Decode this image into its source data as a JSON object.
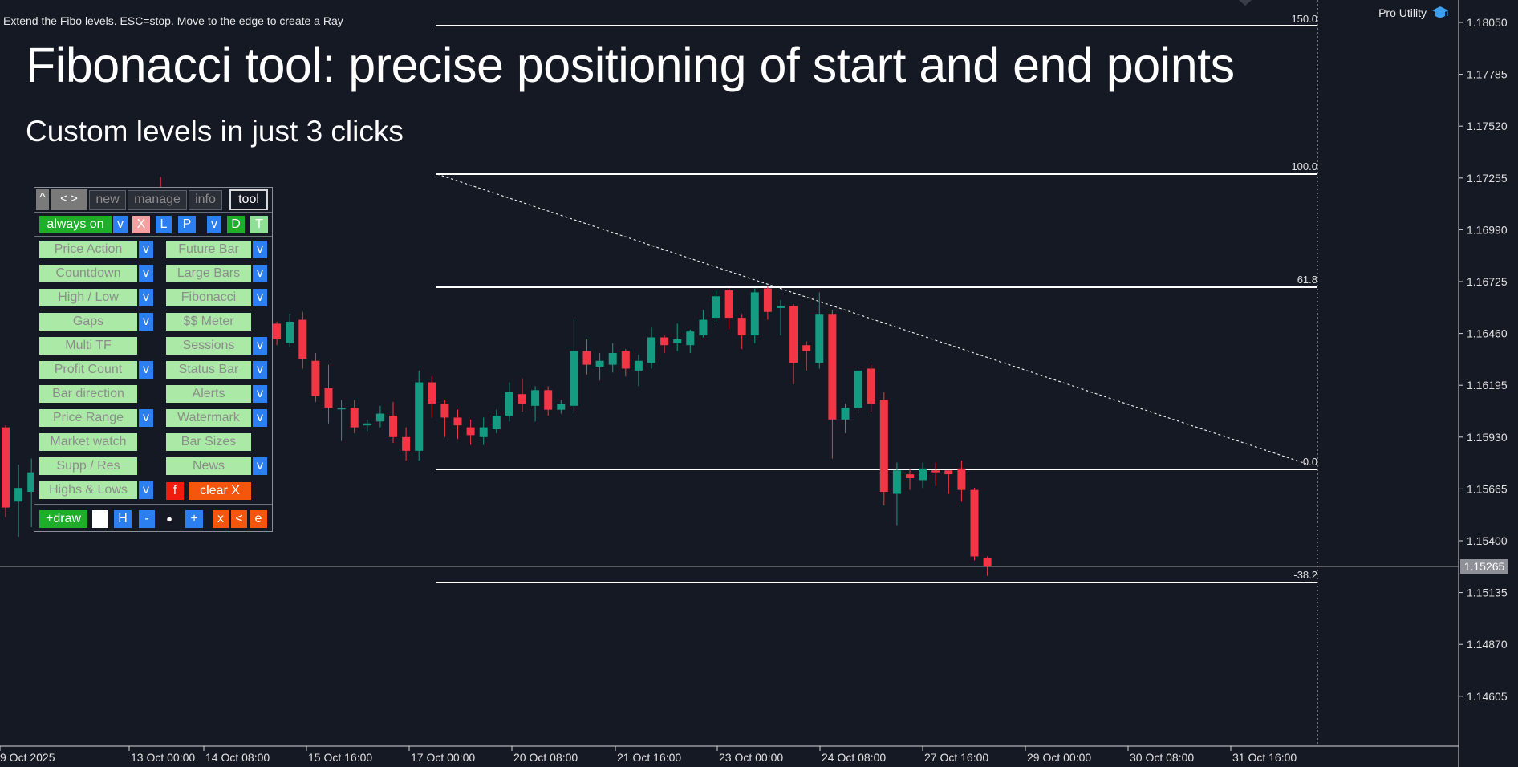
{
  "status_message": "Extend the Fibo levels. ESC=stop. Move to the edge to create a Ray",
  "pro_utility": "Pro Utility",
  "headline": "Fibonacci tool: precise positioning of start and end points",
  "subheadline": "Custom levels in just 3 clicks",
  "colors": {
    "background": "#141924",
    "bull": "#159b82",
    "bear": "#f23645",
    "green_btn": "#1fae2a",
    "blue_btn": "#2b7ff0",
    "orange_btn": "#f3560c"
  },
  "fibo_levels": [
    {
      "label": "150.0",
      "price": 1.1798
    },
    {
      "label": "100.0",
      "price": 1.1726
    },
    {
      "label": "61.8",
      "price": 1.1671
    },
    {
      "label": "0.0",
      "price": 1.1582
    },
    {
      "label": "-38.2",
      "price": 1.1527
    }
  ],
  "price_axis": {
    "ticks": [
      "1.18050",
      "1.17785",
      "1.17520",
      "1.17255",
      "1.16990",
      "1.16725",
      "1.16460",
      "1.16195",
      "1.15930",
      "1.15665",
      "1.15400",
      "1.15135",
      "1.14870",
      "1.14605"
    ],
    "current_price": "1.15265"
  },
  "time_axis": [
    "9 Oct 2025",
    "13 Oct 00:00",
    "14 Oct 08:00",
    "15 Oct 16:00",
    "17 Oct 00:00",
    "20 Oct 08:00",
    "21 Oct 16:00",
    "23 Oct 00:00",
    "24 Oct 08:00",
    "27 Oct 16:00",
    "29 Oct 00:00",
    "30 Oct 08:00",
    "31 Oct 16:00"
  ],
  "panel": {
    "collapse": "^",
    "arrows": "< >",
    "tabs": [
      "new",
      "manage",
      "info",
      "tool"
    ],
    "active_tab": "tool",
    "always_on": "always on",
    "row1": {
      "v1": "v",
      "x": "X",
      "l": "L",
      "p": "P",
      "v2": "v",
      "d": "D",
      "t": "T"
    },
    "modules_left": [
      "Price Action",
      "Countdown",
      "High / Low",
      "Gaps",
      "Multi TF",
      "Profit Count",
      "Bar direction",
      "Price Range",
      "Market watch",
      "Supp / Res",
      "Highs & Lows"
    ],
    "modules_right": [
      "Future Bar",
      "Large Bars",
      "Fibonacci",
      "$$ Meter",
      "Sessions",
      "Status Bar",
      "Alerts",
      "Watermark",
      "Bar Sizes",
      "News"
    ],
    "v_label": "v",
    "f_label": "f",
    "clear_x": "clear X",
    "bottom": {
      "draw": "+draw",
      "h": "H",
      "minus": "-",
      "dot": "●",
      "plus": "+",
      "x": "x",
      "lt": "<",
      "e": "e"
    }
  },
  "candles": [
    {
      "o": 1.1598,
      "h": 1.1599,
      "l": 1.1552,
      "c": 1.1557
    },
    {
      "o": 1.156,
      "h": 1.1579,
      "l": 1.1542,
      "c": 1.1567
    },
    {
      "o": 1.1565,
      "h": 1.1582,
      "l": 1.1547,
      "c": 1.1575
    },
    {
      "o": 1.1595,
      "h": 1.1629,
      "l": 1.1585,
      "c": 1.162
    },
    {
      "o": 1.162,
      "h": 1.165,
      "l": 1.1606,
      "c": 1.164
    },
    {
      "o": 1.1641,
      "h": 1.1662,
      "l": 1.1629,
      "c": 1.1653
    },
    {
      "o": 1.1652,
      "h": 1.1665,
      "l": 1.1642,
      "c": 1.165
    },
    {
      "o": 1.165,
      "h": 1.1667,
      "l": 1.164,
      "c": 1.1655
    },
    {
      "o": 1.1653,
      "h": 1.1684,
      "l": 1.1648,
      "c": 1.1677
    },
    {
      "o": 1.1677,
      "h": 1.1697,
      "l": 1.167,
      "c": 1.169
    },
    {
      "o": 1.169,
      "h": 1.1712,
      "l": 1.1684,
      "c": 1.1707
    },
    {
      "o": 1.1706,
      "h": 1.1715,
      "l": 1.1699,
      "c": 1.1712
    },
    {
      "o": 1.1714,
      "h": 1.1726,
      "l": 1.1702,
      "c": 1.1707
    },
    {
      "o": 1.1708,
      "h": 1.171,
      "l": 1.167,
      "c": 1.1676
    },
    {
      "o": 1.1678,
      "h": 1.1682,
      "l": 1.166,
      "c": 1.167
    },
    {
      "o": 1.1672,
      "h": 1.1676,
      "l": 1.1649,
      "c": 1.1653
    },
    {
      "o": 1.1656,
      "h": 1.1669,
      "l": 1.1654,
      "c": 1.1664
    },
    {
      "o": 1.1667,
      "h": 1.1674,
      "l": 1.166,
      "c": 1.1671
    },
    {
      "o": 1.1673,
      "h": 1.1677,
      "l": 1.1647,
      "c": 1.1663
    },
    {
      "o": 1.1665,
      "h": 1.1666,
      "l": 1.165,
      "c": 1.1652
    },
    {
      "o": 1.1653,
      "h": 1.1658,
      "l": 1.1643,
      "c": 1.1649
    },
    {
      "o": 1.1651,
      "h": 1.1652,
      "l": 1.164,
      "c": 1.1643
    },
    {
      "o": 1.1641,
      "h": 1.1656,
      "l": 1.1639,
      "c": 1.1652
    },
    {
      "o": 1.1653,
      "h": 1.1657,
      "l": 1.1628,
      "c": 1.1633
    },
    {
      "o": 1.1632,
      "h": 1.1636,
      "l": 1.1611,
      "c": 1.1614
    },
    {
      "o": 1.1618,
      "h": 1.163,
      "l": 1.16,
      "c": 1.1608
    },
    {
      "o": 1.1608,
      "h": 1.1612,
      "l": 1.1591,
      "c": 1.1608
    },
    {
      "o": 1.1608,
      "h": 1.1612,
      "l": 1.1595,
      "c": 1.1598
    },
    {
      "o": 1.1599,
      "h": 1.1602,
      "l": 1.1596,
      "c": 1.16
    },
    {
      "o": 1.1601,
      "h": 1.1609,
      "l": 1.1598,
      "c": 1.1605
    },
    {
      "o": 1.1604,
      "h": 1.1611,
      "l": 1.159,
      "c": 1.1593
    },
    {
      "o": 1.1593,
      "h": 1.1598,
      "l": 1.1581,
      "c": 1.1586
    },
    {
      "o": 1.1586,
      "h": 1.1627,
      "l": 1.1581,
      "c": 1.1621
    },
    {
      "o": 1.1621,
      "h": 1.1624,
      "l": 1.1603,
      "c": 1.161
    },
    {
      "o": 1.161,
      "h": 1.1612,
      "l": 1.1593,
      "c": 1.1603
    },
    {
      "o": 1.1603,
      "h": 1.1607,
      "l": 1.1592,
      "c": 1.1599
    },
    {
      "o": 1.1598,
      "h": 1.1602,
      "l": 1.1589,
      "c": 1.1594
    },
    {
      "o": 1.1593,
      "h": 1.1603,
      "l": 1.1589,
      "c": 1.1598
    },
    {
      "o": 1.1597,
      "h": 1.1607,
      "l": 1.1595,
      "c": 1.1604
    },
    {
      "o": 1.1604,
      "h": 1.1621,
      "l": 1.1601,
      "c": 1.1616
    },
    {
      "o": 1.1615,
      "h": 1.1623,
      "l": 1.1606,
      "c": 1.161
    },
    {
      "o": 1.1609,
      "h": 1.1619,
      "l": 1.1601,
      "c": 1.1617
    },
    {
      "o": 1.1617,
      "h": 1.1619,
      "l": 1.1604,
      "c": 1.1607
    },
    {
      "o": 1.1607,
      "h": 1.1612,
      "l": 1.1605,
      "c": 1.161
    },
    {
      "o": 1.1609,
      "h": 1.1653,
      "l": 1.1605,
      "c": 1.1637
    },
    {
      "o": 1.1637,
      "h": 1.1643,
      "l": 1.1625,
      "c": 1.163
    },
    {
      "o": 1.1629,
      "h": 1.1636,
      "l": 1.1622,
      "c": 1.1632
    },
    {
      "o": 1.163,
      "h": 1.1641,
      "l": 1.1626,
      "c": 1.1636
    },
    {
      "o": 1.1637,
      "h": 1.1638,
      "l": 1.1624,
      "c": 1.1628
    },
    {
      "o": 1.1627,
      "h": 1.1635,
      "l": 1.1619,
      "c": 1.1632
    },
    {
      "o": 1.1631,
      "h": 1.1649,
      "l": 1.1628,
      "c": 1.1644
    },
    {
      "o": 1.1644,
      "h": 1.1645,
      "l": 1.1636,
      "c": 1.164
    },
    {
      "o": 1.1641,
      "h": 1.1651,
      "l": 1.1637,
      "c": 1.1643
    },
    {
      "o": 1.164,
      "h": 1.1648,
      "l": 1.1636,
      "c": 1.1647
    },
    {
      "o": 1.1645,
      "h": 1.1658,
      "l": 1.1644,
      "c": 1.1653
    },
    {
      "o": 1.1654,
      "h": 1.1668,
      "l": 1.1652,
      "c": 1.1665
    },
    {
      "o": 1.1668,
      "h": 1.1669,
      "l": 1.1648,
      "c": 1.1654
    },
    {
      "o": 1.1654,
      "h": 1.1656,
      "l": 1.1638,
      "c": 1.1645
    },
    {
      "o": 1.1645,
      "h": 1.1669,
      "l": 1.1641,
      "c": 1.1667
    },
    {
      "o": 1.1669,
      "h": 1.167,
      "l": 1.1653,
      "c": 1.1657
    },
    {
      "o": 1.1659,
      "h": 1.1663,
      "l": 1.1645,
      "c": 1.166
    },
    {
      "o": 1.166,
      "h": 1.1661,
      "l": 1.162,
      "c": 1.1631
    },
    {
      "o": 1.164,
      "h": 1.1642,
      "l": 1.1627,
      "c": 1.1637
    },
    {
      "o": 1.1631,
      "h": 1.1667,
      "l": 1.1628,
      "c": 1.1656
    },
    {
      "o": 1.1656,
      "h": 1.1658,
      "l": 1.1582,
      "c": 1.1602
    },
    {
      "o": 1.1602,
      "h": 1.161,
      "l": 1.1595,
      "c": 1.1608
    },
    {
      "o": 1.1608,
      "h": 1.1629,
      "l": 1.1605,
      "c": 1.1627
    },
    {
      "o": 1.1628,
      "h": 1.163,
      "l": 1.1606,
      "c": 1.161
    },
    {
      "o": 1.1612,
      "h": 1.1616,
      "l": 1.1558,
      "c": 1.1565
    },
    {
      "o": 1.1564,
      "h": 1.158,
      "l": 1.1548,
      "c": 1.1576
    },
    {
      "o": 1.1574,
      "h": 1.1577,
      "l": 1.1566,
      "c": 1.1572
    },
    {
      "o": 1.1571,
      "h": 1.158,
      "l": 1.1567,
      "c": 1.1577
    },
    {
      "o": 1.1576,
      "h": 1.158,
      "l": 1.1568,
      "c": 1.1575
    },
    {
      "o": 1.1576,
      "h": 1.1576,
      "l": 1.1564,
      "c": 1.1574
    },
    {
      "o": 1.1577,
      "h": 1.1581,
      "l": 1.156,
      "c": 1.1566
    },
    {
      "o": 1.1566,
      "h": 1.1567,
      "l": 1.153,
      "c": 1.1532
    },
    {
      "o": 1.1531,
      "h": 1.1532,
      "l": 1.1522,
      "c": 1.1527
    }
  ]
}
